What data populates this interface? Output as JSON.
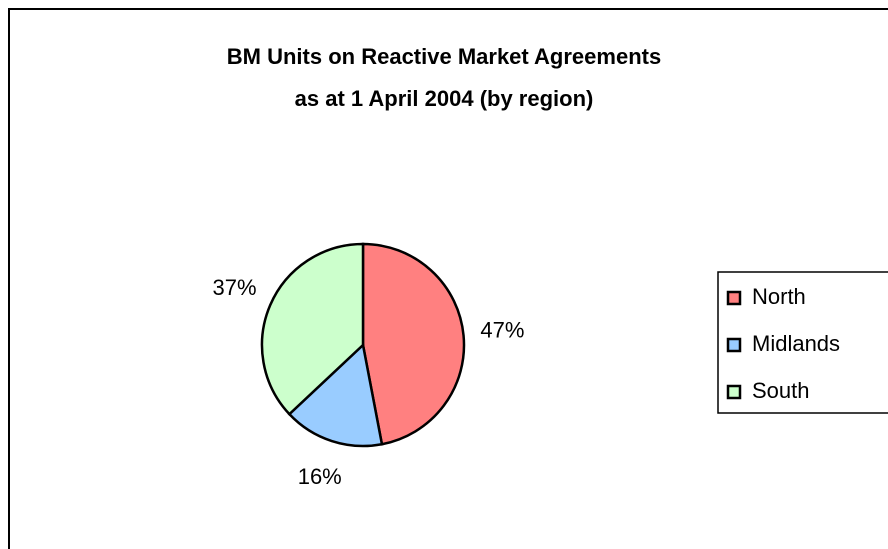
{
  "chart_data": {
    "type": "pie",
    "title": [
      "BM Units on Reactive Market Agreements",
      "as at 1 April 2004 (by region)"
    ],
    "categories": [
      "North",
      "Midlands",
      "South"
    ],
    "values": [
      47,
      16,
      37
    ],
    "value_labels": [
      "47%",
      "16%",
      "37%"
    ],
    "colors": [
      "#ff8080",
      "#99ccff",
      "#ccffcc"
    ],
    "legend": "right"
  }
}
